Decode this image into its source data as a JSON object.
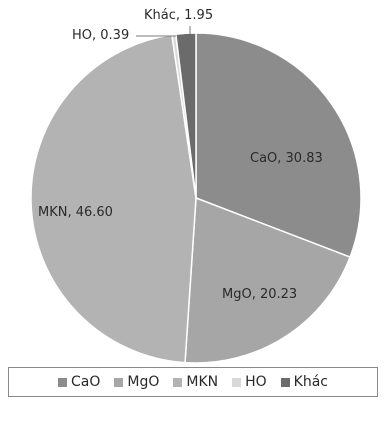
{
  "chart_data": {
    "type": "pie",
    "title": "",
    "legend_position": "bottom",
    "slices": [
      {
        "label": "CaO",
        "value": 30.83,
        "value_text": "30.83",
        "color": "#8c8c8c",
        "label_text": "CaO, 30.83"
      },
      {
        "label": "MgO",
        "value": 20.23,
        "value_text": "20.23",
        "color": "#a6a6a6",
        "label_text": "MgO, 20.23"
      },
      {
        "label": "MKN",
        "value": 46.6,
        "value_text": "46.60",
        "color": "#b3b3b3",
        "label_text": "MKN, 46.60"
      },
      {
        "label": "HO",
        "value": 0.39,
        "value_text": "0.39",
        "color": "#d9d9d9",
        "label_text": "HO, 0.39"
      },
      {
        "label": "Khác",
        "value": 1.95,
        "value_text": "1.95",
        "color": "#6b6b6b",
        "label_text": "Khác, 1.95"
      }
    ]
  }
}
